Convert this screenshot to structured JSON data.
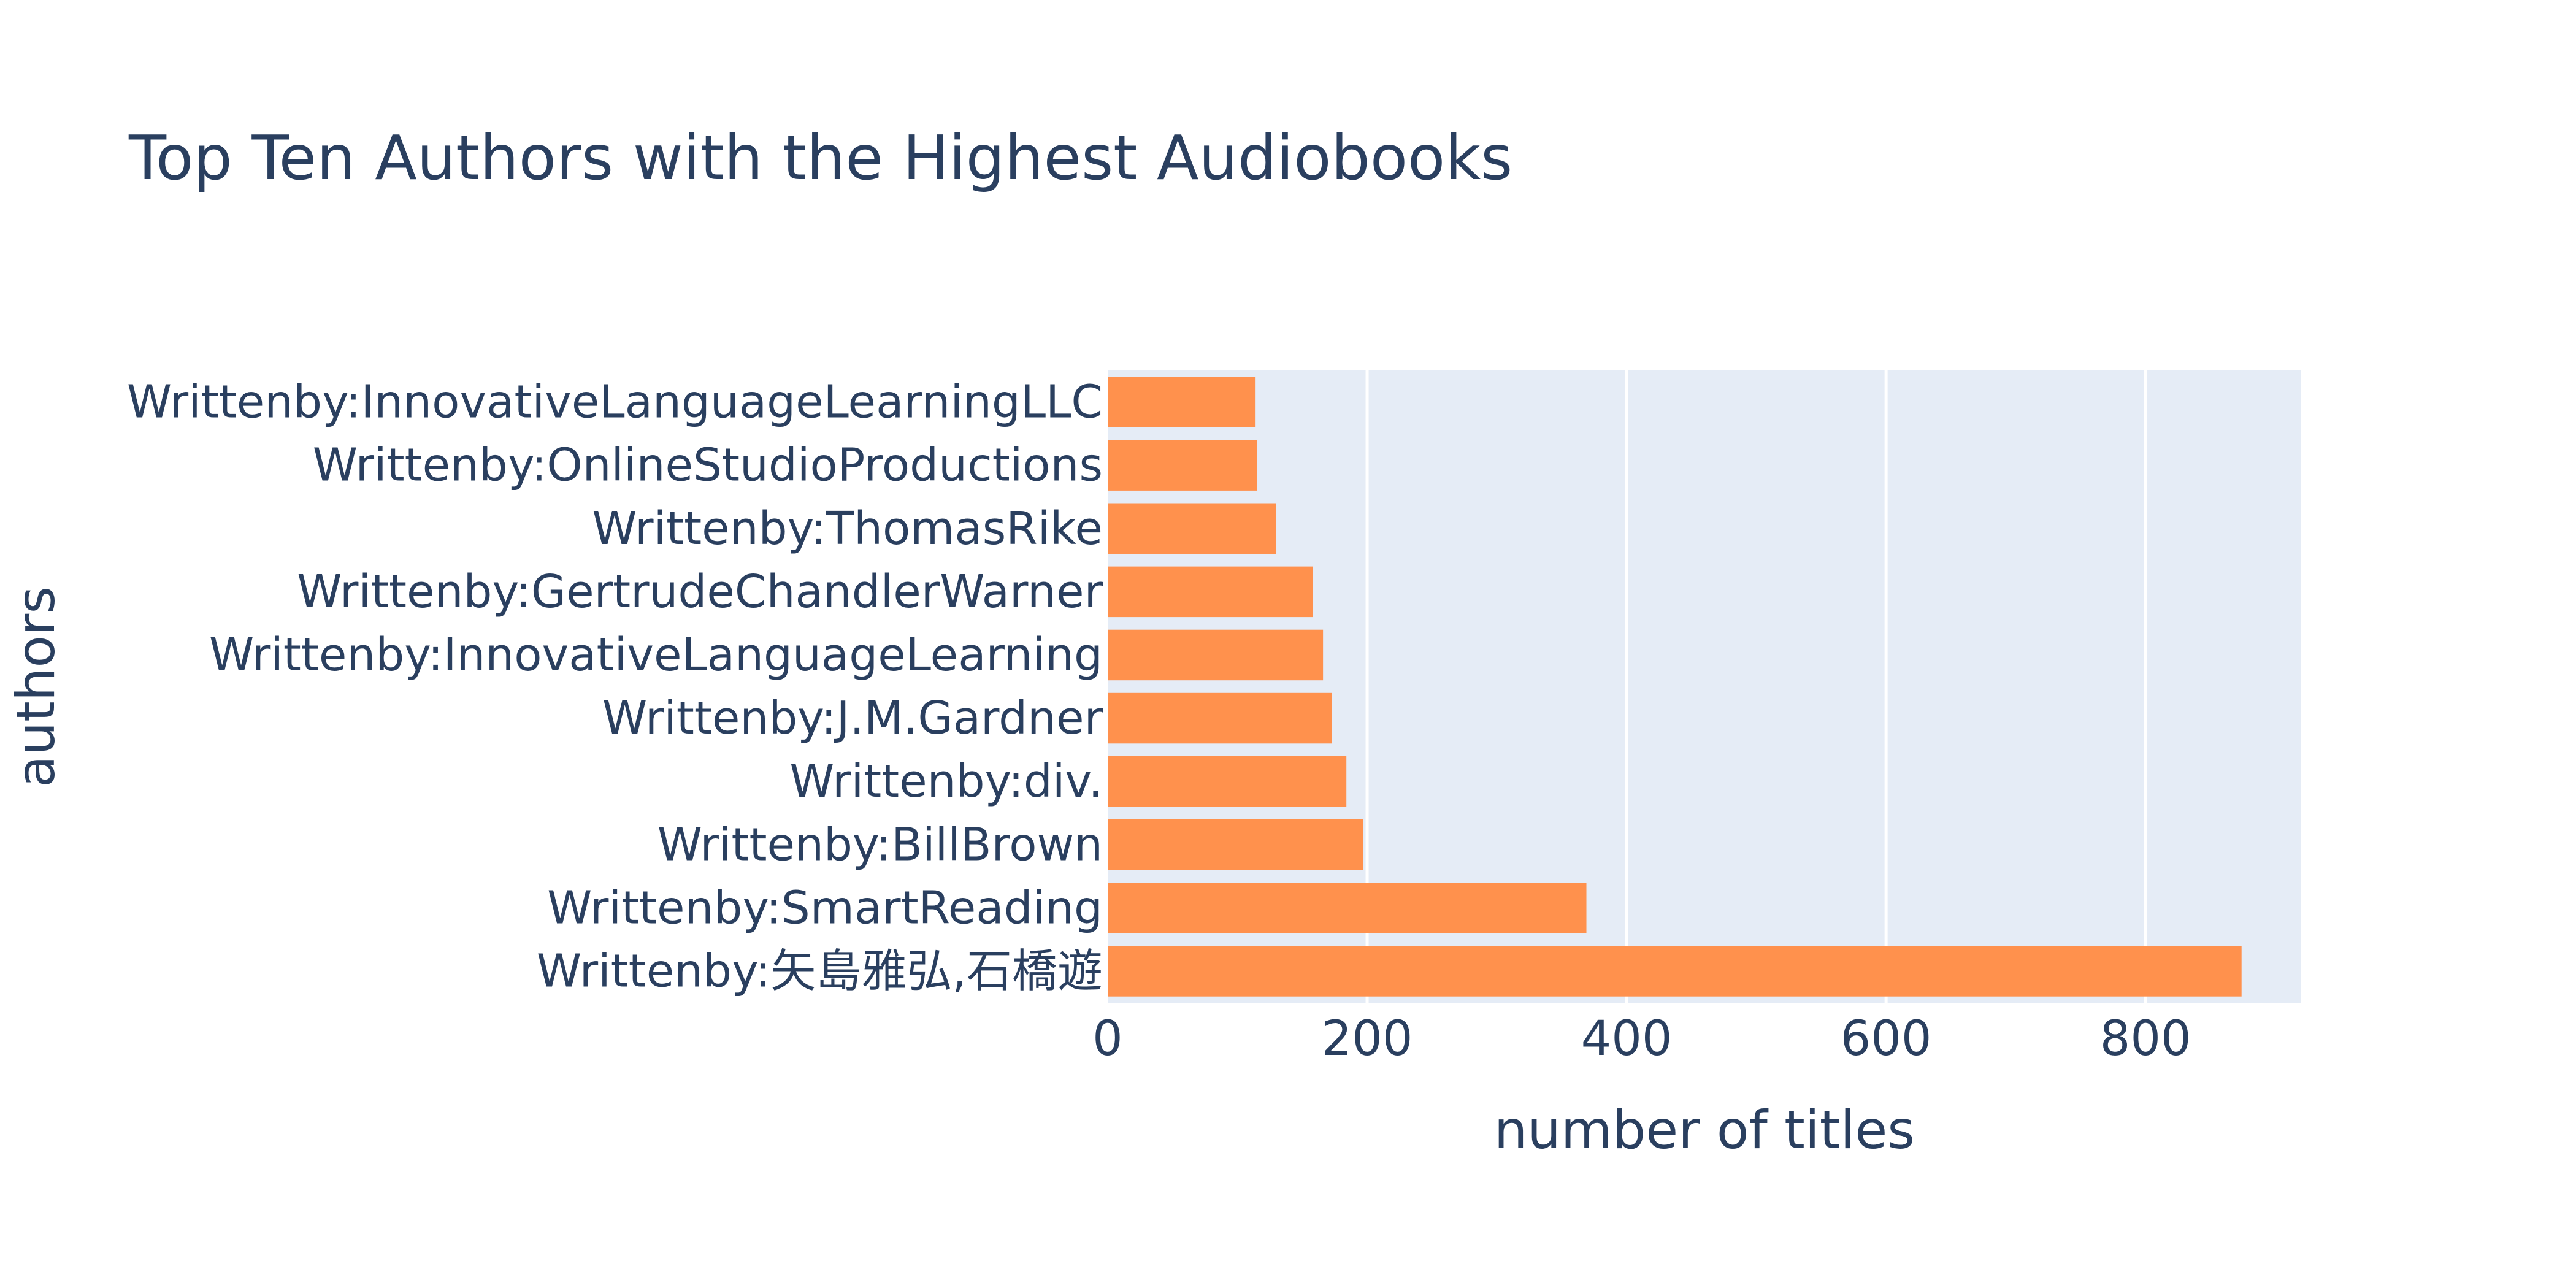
{
  "chart_data": {
    "type": "bar",
    "orientation": "horizontal",
    "title": "Top Ten Authors with the Highest Audiobooks",
    "xlabel": "number of titles",
    "ylabel": "authors",
    "categories": [
      "Writtenby:矢島雅弘,石橋遊",
      "Writtenby:SmartReading",
      "Writtenby:BillBrown",
      "Writtenby:div.",
      "Writtenby:J.M.Gardner",
      "Writtenby:InnovativeLanguageLearning",
      "Writtenby:GertrudeChandlerWarner",
      "Writtenby:ThomasRike",
      "Writtenby:OnlineStudioProductions",
      "Writtenby:InnovativeLanguageLearningLLC"
    ],
    "values": [
      874,
      369,
      197,
      184,
      173,
      166,
      158,
      130,
      115,
      114
    ],
    "xlim": [
      0,
      920
    ],
    "xticks": [
      0,
      200,
      400,
      600,
      800
    ],
    "xtick_labels": [
      "0",
      "200",
      "400",
      "600",
      "800"
    ],
    "grid": true,
    "bar_color": "#ff914d",
    "plot_bg_color": "#e5ecf6",
    "grid_color": "#ffffff",
    "text_color": "#2a3f5f"
  }
}
